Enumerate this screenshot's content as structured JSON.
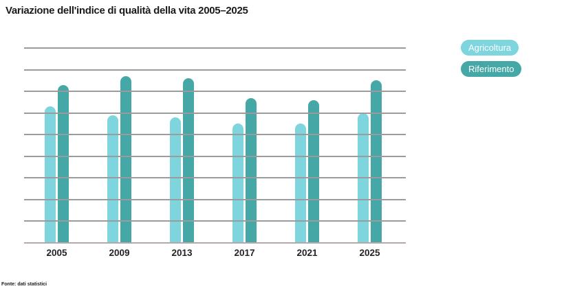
{
  "header": {
    "title": "Variazione dell'indice di qualità della vita 2005–2025"
  },
  "footer": {
    "source": "Fonte: dati statistici"
  },
  "chart_data": {
    "type": "bar",
    "title": "Variazione dell'indice di qualità della vita 2005–2025",
    "categories": [
      "2005",
      "2009",
      "2013",
      "2017",
      "2021",
      "2025"
    ],
    "series": [
      {
        "name": "Agricoltura",
        "color": "#7ED5DE",
        "values": [
          63,
          59,
          58,
          55,
          55,
          60
        ]
      },
      {
        "name": "Riferimento",
        "color": "#46A8A6",
        "values": [
          73,
          77,
          76,
          67,
          66,
          75
        ]
      }
    ],
    "xlabel": "",
    "ylabel": "",
    "ylim": [
      0,
      90
    ],
    "grid_step": 10,
    "grid": true,
    "y_tick_labels_visible": false,
    "legend_position": "top-right",
    "colors": {
      "grid": "#9b9b9b",
      "axis": "#b5a8a8",
      "title": "#1d1a1b",
      "tick_label": "#262224",
      "legend_text": "#ffffff"
    }
  }
}
